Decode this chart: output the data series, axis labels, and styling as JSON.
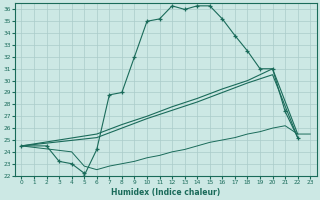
{
  "xlabel": "Humidex (Indice chaleur)",
  "bg_color": "#cce8e4",
  "grid_color": "#aaccca",
  "line_color": "#1a6b5a",
  "xlim": [
    -0.5,
    23.5
  ],
  "ylim": [
    22,
    36.5
  ],
  "xticks": [
    0,
    1,
    2,
    3,
    4,
    5,
    6,
    7,
    8,
    9,
    10,
    11,
    12,
    13,
    14,
    15,
    16,
    17,
    18,
    19,
    20,
    21,
    22,
    23
  ],
  "yticks": [
    22,
    23,
    24,
    25,
    26,
    27,
    28,
    29,
    30,
    31,
    32,
    33,
    34,
    35,
    36
  ],
  "line1_x": [
    0,
    2,
    3,
    4,
    5,
    5,
    6,
    7,
    8,
    9,
    10,
    11,
    12,
    13,
    14,
    15,
    16,
    17,
    18,
    19,
    20,
    21,
    22
  ],
  "line1_y": [
    24.5,
    24.5,
    23.2,
    23.0,
    22.2,
    22.0,
    24.2,
    28.8,
    29.0,
    32.0,
    35.0,
    35.2,
    36.3,
    36.0,
    36.3,
    36.3,
    35.2,
    33.8,
    32.5,
    31.0,
    31.0,
    27.4,
    25.2
  ],
  "line2_x": [
    0,
    6,
    8,
    10,
    12,
    14,
    16,
    18,
    20,
    22
  ],
  "line2_y": [
    24.5,
    25.2,
    26.0,
    26.8,
    27.5,
    28.2,
    29.0,
    29.8,
    30.5,
    25.2
  ],
  "line3_x": [
    0,
    6,
    8,
    10,
    12,
    14,
    16,
    18,
    20,
    22
  ],
  "line3_y": [
    24.5,
    25.5,
    26.3,
    27.0,
    27.8,
    28.5,
    29.3,
    30.0,
    31.0,
    25.5
  ],
  "line4_x": [
    0,
    4,
    5,
    6,
    7,
    8,
    9,
    10,
    11,
    12,
    13,
    14,
    15,
    16,
    17,
    18,
    19,
    20,
    21,
    22,
    23
  ],
  "line4_y": [
    24.5,
    24.0,
    22.8,
    22.5,
    22.8,
    23.0,
    23.2,
    23.5,
    23.7,
    24.0,
    24.2,
    24.5,
    24.8,
    25.0,
    25.2,
    25.5,
    25.7,
    26.0,
    26.2,
    25.5,
    25.5
  ]
}
